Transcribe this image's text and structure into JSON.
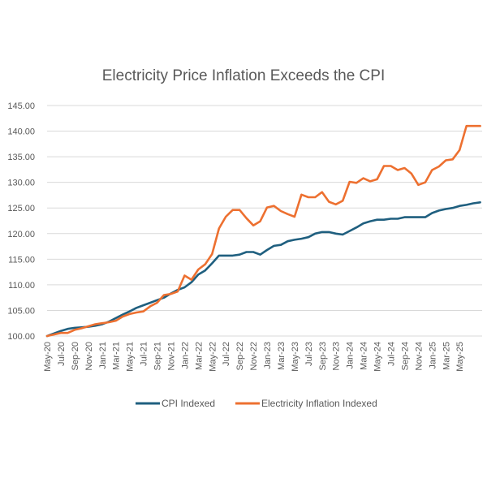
{
  "chart_data": {
    "type": "line",
    "title": "Electricity Price Inflation Exceeds the CPI",
    "xlabel": "",
    "ylabel": "",
    "ylim": [
      100,
      145
    ],
    "yticks": [
      "100.00",
      "105.00",
      "110.00",
      "115.00",
      "120.00",
      "125.00",
      "130.00",
      "135.00",
      "140.00",
      "145.00"
    ],
    "grid": true,
    "legend_position": "bottom",
    "x": [
      "May-20",
      "Jun-20",
      "Jul-20",
      "Aug-20",
      "Sep-20",
      "Oct-20",
      "Nov-20",
      "Dec-20",
      "Jan-21",
      "Feb-21",
      "Mar-21",
      "Apr-21",
      "May-21",
      "Jun-21",
      "Jul-21",
      "Aug-21",
      "Sep-21",
      "Oct-21",
      "Nov-21",
      "Dec-21",
      "Jan-22",
      "Feb-22",
      "Mar-22",
      "Apr-22",
      "May-22",
      "Jun-22",
      "Jul-22",
      "Aug-22",
      "Sep-22",
      "Oct-22",
      "Nov-22",
      "Dec-22",
      "Jan-23",
      "Feb-23",
      "Mar-23",
      "Apr-23",
      "May-23",
      "Jun-23",
      "Jul-23",
      "Aug-23",
      "Sep-23",
      "Oct-23",
      "Nov-23",
      "Dec-23",
      "Jan-24",
      "Feb-24",
      "Mar-24",
      "Apr-24",
      "May-24",
      "Jun-24",
      "Jul-24",
      "Aug-24",
      "Sep-24",
      "Oct-24",
      "Nov-24",
      "Dec-24",
      "Jan-25",
      "Feb-25",
      "Mar-25",
      "Apr-25",
      "May-25",
      "Jun-25",
      "Jul-25",
      "Aug-25"
    ],
    "xtick_labels": [
      "May-20",
      "Jul-20",
      "Sep-20",
      "Nov-20",
      "Jan-21",
      "Mar-21",
      "May-21",
      "Jul-21",
      "Sep-21",
      "Nov-21",
      "Jan-22",
      "Mar-22",
      "May-22",
      "Jul-22",
      "Sep-22",
      "Nov-22",
      "Jan-23",
      "Mar-23",
      "May-23",
      "Jul-23",
      "Sep-23",
      "Nov-23",
      "Jan-24",
      "Mar-24",
      "May-24",
      "Jul-24",
      "Sep-24",
      "Nov-24",
      "Jan-25",
      "Mar-25",
      "May-25"
    ],
    "series": [
      {
        "name": "CPI Indexed",
        "color": "#1f5f7f",
        "values": [
          100.0,
          100.5,
          101.0,
          101.4,
          101.6,
          101.7,
          101.8,
          102.0,
          102.3,
          102.8,
          103.5,
          104.2,
          104.8,
          105.5,
          106.0,
          106.5,
          107.0,
          107.5,
          108.3,
          109.0,
          109.5,
          110.5,
          112.0,
          112.8,
          114.2,
          115.7,
          115.7,
          115.7,
          115.9,
          116.4,
          116.4,
          115.9,
          116.8,
          117.6,
          117.8,
          118.5,
          118.8,
          119.0,
          119.3,
          120.0,
          120.3,
          120.3,
          120.0,
          119.8,
          120.5,
          121.2,
          122.0,
          122.4,
          122.7,
          122.7,
          122.9,
          122.9,
          123.2,
          123.2,
          123.2,
          123.2,
          124.0,
          124.5,
          124.8,
          125.0,
          125.4,
          125.6,
          125.9,
          126.1
        ]
      },
      {
        "name": "Electricity Inflation Indexed",
        "color": "#ed7030",
        "values": [
          100.0,
          100.3,
          100.6,
          100.6,
          101.2,
          101.5,
          101.9,
          102.3,
          102.5,
          102.7,
          103.0,
          103.8,
          104.3,
          104.6,
          104.8,
          105.8,
          106.5,
          108.0,
          108.2,
          108.7,
          111.8,
          111.0,
          113.0,
          114.0,
          116.0,
          121.0,
          123.3,
          124.6,
          124.6,
          123.0,
          121.6,
          122.4,
          125.1,
          125.4,
          124.4,
          123.8,
          123.3,
          127.6,
          127.1,
          127.1,
          128.1,
          126.2,
          125.7,
          126.4,
          130.1,
          129.9,
          130.8,
          130.2,
          130.6,
          133.2,
          133.2,
          132.4,
          132.8,
          131.7,
          129.5,
          130.0,
          132.4,
          133.1,
          134.3,
          134.5,
          136.3,
          141.0,
          141.0,
          141.0
        ]
      }
    ]
  }
}
